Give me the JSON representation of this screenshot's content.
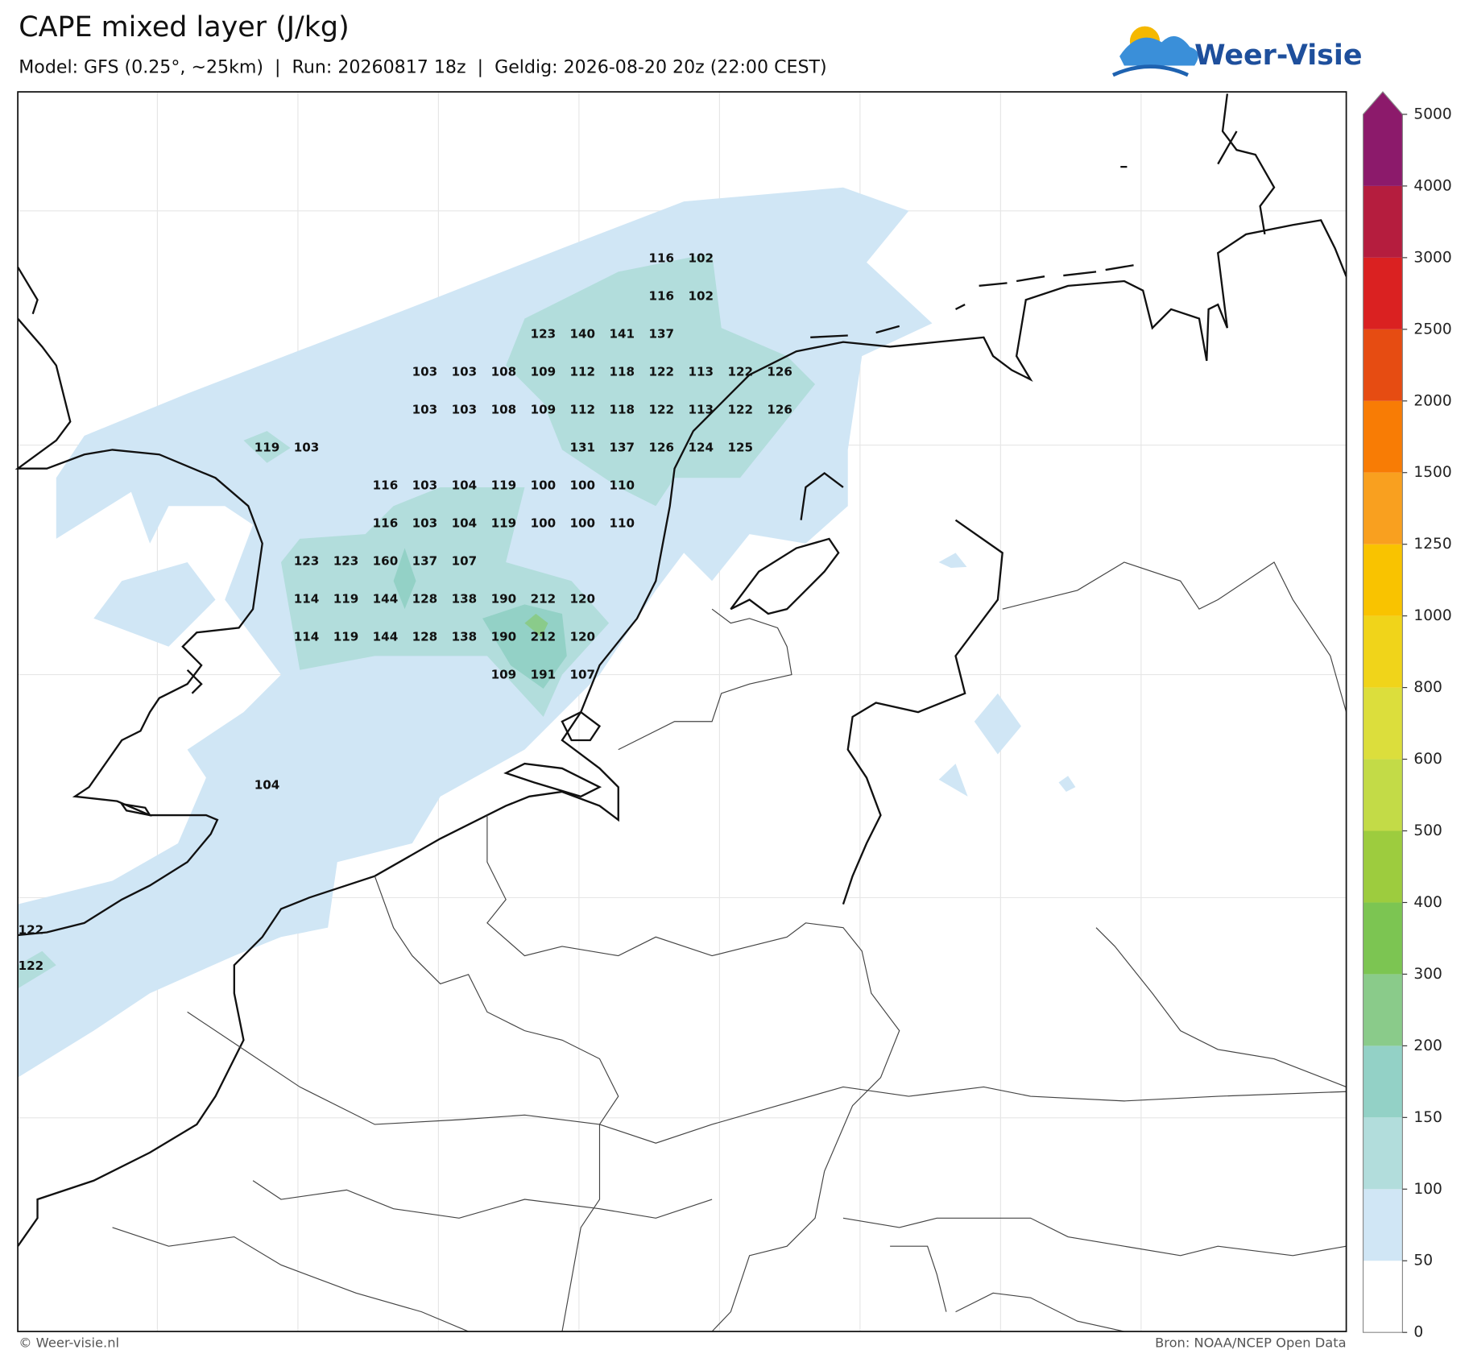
{
  "header": {
    "title": "CAPE mixed layer (J/kg)",
    "subtitle": "Model: GFS (0.25°, ~25km)  |  Run: 20260817 18z  |  Geldig: 2026-08-20 20z (22:00 CEST)",
    "logo": "Weer-Visie"
  },
  "cape_labels": {
    "rows": [
      [
        null,
        null,
        null,
        null,
        null,
        null,
        null,
        null,
        null,
        null,
        116,
        102,
        null,
        null
      ],
      [
        null,
        null,
        null,
        null,
        null,
        null,
        null,
        null,
        null,
        null,
        116,
        102,
        null,
        null
      ],
      [
        null,
        null,
        null,
        null,
        null,
        null,
        null,
        123,
        140,
        141,
        137,
        null,
        null,
        null
      ],
      [
        null,
        null,
        null,
        null,
        103,
        103,
        108,
        109,
        112,
        118,
        122,
        113,
        122,
        126
      ],
      [
        null,
        null,
        null,
        null,
        103,
        103,
        108,
        109,
        112,
        118,
        122,
        113,
        122,
        126
      ],
      [
        119,
        103,
        null,
        null,
        null,
        null,
        null,
        null,
        131,
        137,
        126,
        124,
        125,
        null
      ],
      [
        null,
        null,
        null,
        116,
        103,
        104,
        119,
        100,
        100,
        110,
        null,
        null,
        null,
        null
      ],
      [
        null,
        null,
        null,
        116,
        103,
        104,
        119,
        100,
        100,
        110,
        null,
        null,
        null,
        null
      ],
      [
        null,
        123,
        123,
        160,
        137,
        107,
        null,
        null,
        null,
        null,
        null,
        null,
        null,
        null
      ],
      [
        null,
        114,
        119,
        144,
        128,
        138,
        190,
        212,
        120,
        null,
        null,
        null,
        null,
        null
      ],
      [
        null,
        114,
        119,
        144,
        128,
        138,
        190,
        212,
        120,
        null,
        null,
        null,
        null,
        null
      ],
      [
        null,
        null,
        null,
        null,
        null,
        null,
        109,
        191,
        107,
        null,
        null,
        null,
        null,
        null
      ]
    ],
    "other": [
      104,
      122,
      122
    ]
  },
  "colorbar": {
    "ticks": [
      0,
      50,
      100,
      150,
      200,
      300,
      400,
      500,
      600,
      800,
      1000,
      1250,
      1500,
      2000,
      2500,
      3000,
      4000,
      5000
    ],
    "colors": [
      "#ffffff",
      "#d0e6f5",
      "#b2dddc",
      "#93d1c6",
      "#8acb8a",
      "#7cc552",
      "#9dcc3e",
      "#c3db47",
      "#dcde3c",
      "#f0d41a",
      "#f9c300",
      "#f9a01f",
      "#f87c05",
      "#e64c12",
      "#da2121",
      "#b51d3e",
      "#8c1a6b"
    ]
  },
  "footer": {
    "left": "© Weer-visie.nl",
    "right": "Bron: NOAA/NCEP Open Data"
  }
}
